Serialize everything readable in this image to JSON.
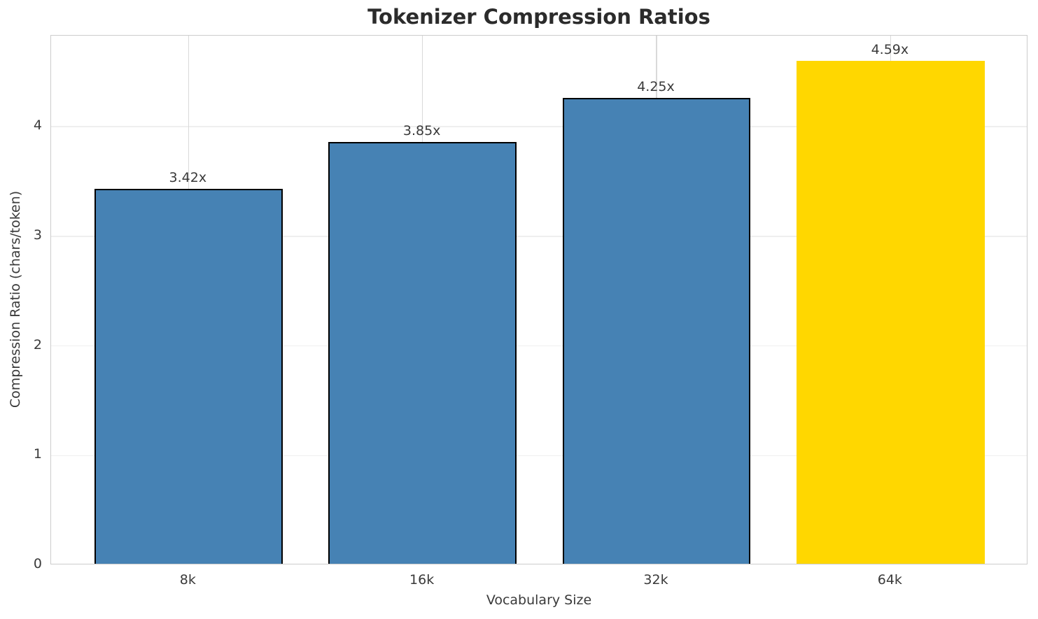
{
  "chart_data": {
    "type": "bar",
    "title": "Tokenizer Compression Ratios",
    "xlabel": "Vocabulary Size",
    "ylabel": "Compression Ratio (chars/token)",
    "categories": [
      "8k",
      "16k",
      "32k",
      "64k"
    ],
    "values": [
      3.42,
      3.85,
      4.25,
      4.59
    ],
    "bar_labels": [
      "3.42x",
      "3.85x",
      "4.25x",
      "4.59x"
    ],
    "bar_colors": [
      "#4682B4",
      "#4682B4",
      "#4682B4",
      "#FFD700"
    ],
    "bar_edge_colors": [
      "#000000",
      "#000000",
      "#000000",
      "none"
    ],
    "yticks": [
      "0",
      "1",
      "2",
      "3",
      "4"
    ],
    "ylim": [
      0,
      4.83
    ],
    "grid": true,
    "legend_position": "none",
    "highlighted_category": "64k"
  },
  "colors": {
    "steel_blue": "#4682B4",
    "gold": "#FFD700",
    "bar_edge": "#000000",
    "spine": "#cccccc",
    "grid_horizontal": "#efefef",
    "grid_vertical": "#d9d9d9",
    "text": "#3a3a3a",
    "title_text": "#2b2b2b"
  }
}
